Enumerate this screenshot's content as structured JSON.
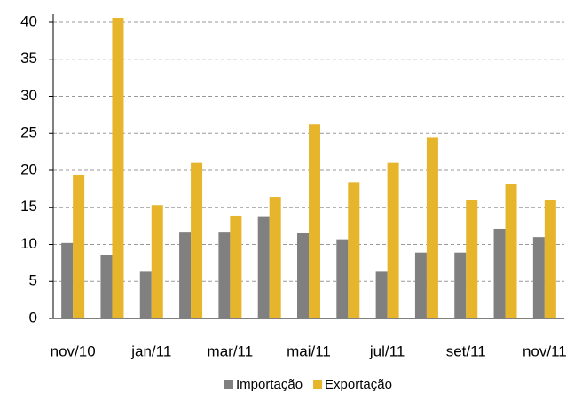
{
  "chart_data": {
    "type": "bar",
    "categories": [
      "nov/10",
      null,
      "jan/11",
      null,
      "mar/11",
      null,
      "mai/11",
      null,
      "jul/11",
      null,
      "set/11",
      null,
      "nov/11"
    ],
    "series": [
      {
        "name": "Importação",
        "color": "#808080",
        "values": [
          10.2,
          8.6,
          6.3,
          11.6,
          11.6,
          13.7,
          11.5,
          10.7,
          6.3,
          8.9,
          8.9,
          12.1,
          11.0
        ]
      },
      {
        "name": "Exportação",
        "color": "#e6b52c",
        "values": [
          19.4,
          40.6,
          15.3,
          21.0,
          13.9,
          16.4,
          26.2,
          18.4,
          21.0,
          24.5,
          16.0,
          18.2,
          16.0
        ]
      }
    ],
    "ylim": [
      0,
      40
    ],
    "yticks": [
      0,
      5,
      10,
      15,
      20,
      25,
      30,
      35,
      40
    ],
    "grid": true,
    "legend": "bottom"
  }
}
